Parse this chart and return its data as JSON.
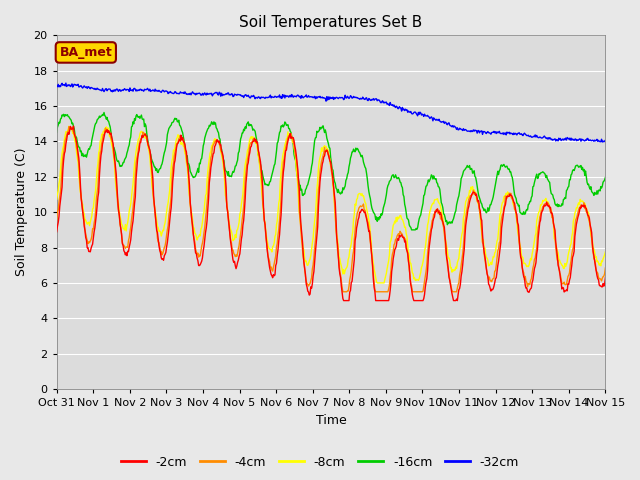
{
  "title": "Soil Temperatures Set B",
  "xlabel": "Time",
  "ylabel": "Soil Temperature (C)",
  "ylim": [
    0,
    20
  ],
  "yticks": [
    0,
    2,
    4,
    6,
    8,
    10,
    12,
    14,
    16,
    18,
    20
  ],
  "xtick_labels": [
    "Oct 31",
    "Nov 1",
    "Nov 2",
    "Nov 3",
    "Nov 4",
    "Nov 5",
    "Nov 6",
    "Nov 7",
    "Nov 8",
    "Nov 9",
    "Nov 10",
    "Nov 11",
    "Nov 12",
    "Nov 13",
    "Nov 14",
    "Nov 15"
  ],
  "annotation": "BA_met",
  "annotation_color": "#8B0000",
  "annotation_bg": "#FFD700",
  "annotation_edge": "#8B0000",
  "fig_bg_color": "#E8E8E8",
  "plot_bg_color": "#DCDCDC",
  "line_colors": {
    "-2cm": "#FF0000",
    "-4cm": "#FF8C00",
    "-8cm": "#FFFF00",
    "-16cm": "#00CC00",
    "-32cm": "#0000FF"
  },
  "legend_labels": [
    "-2cm",
    "-4cm",
    "-8cm",
    "-16cm",
    "-32cm"
  ],
  "n_days": 15,
  "points_per_day": 48,
  "grid_color": "#FFFFFF",
  "lw": 1.0
}
